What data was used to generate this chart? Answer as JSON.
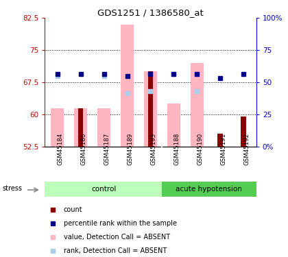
{
  "title": "GDS1251 / 1386580_at",
  "samples": [
    "GSM45184",
    "GSM45186",
    "GSM45187",
    "GSM45189",
    "GSM45193",
    "GSM45188",
    "GSM45190",
    "GSM45191",
    "GSM45192"
  ],
  "ylim": [
    52.5,
    82.5
  ],
  "yticks": [
    52.5,
    60,
    67.5,
    75,
    82.5
  ],
  "y2ticks": [
    0,
    25,
    50,
    75,
    100
  ],
  "y2labels": [
    "0%",
    "25",
    "50",
    "75",
    "100%"
  ],
  "pink_bars_top": [
    61.5,
    61.5,
    61.5,
    81.0,
    70.0,
    62.5,
    72.0,
    52.5,
    52.5
  ],
  "red_bars_top": [
    52.5,
    61.5,
    52.5,
    52.5,
    70.0,
    52.5,
    52.5,
    55.5,
    59.5
  ],
  "blue_dots_y": [
    69.5,
    69.5,
    69.5,
    69.0,
    69.5,
    69.5,
    69.5,
    68.5,
    69.5
  ],
  "light_blue_y": [
    69.0,
    -1,
    69.0,
    65.0,
    65.5,
    69.5,
    65.5,
    -1,
    -1
  ],
  "control_count": 5,
  "pink_color": "#FFB6C1",
  "red_color": "#8B0000",
  "blue_color": "#00008B",
  "light_blue_color": "#AACCE8",
  "left_axis_color": "#CC0000",
  "right_axis_color": "#0000CC",
  "bg_label_row": "#C8C8C8",
  "bg_ctrl_light": "#BBFFBB",
  "bg_acute_dark": "#55CC55",
  "stress_color": "#888888",
  "dot_size": 28,
  "pink_bar_width": 0.55,
  "red_bar_width": 0.22
}
